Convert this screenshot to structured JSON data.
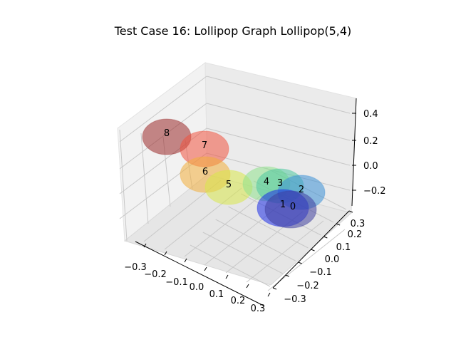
{
  "chart_data": {
    "type": "scatter",
    "title": "Test Case 16: Lollipop Graph Lollipop(5,4)",
    "xlabel": "",
    "ylabel": "",
    "zlabel": "",
    "grid": true,
    "projection": "3d",
    "x_ticks": [
      "−0.3",
      "−0.2",
      "−0.1",
      "0.0",
      "0.1",
      "0.2",
      "0.3"
    ],
    "y_ticks": [
      "−0.3",
      "−0.2",
      "−0.1",
      "0.0",
      "0.1",
      "0.2",
      "0.3"
    ],
    "z_ticks": [
      "−0.2",
      "0.0",
      "0.2",
      "0.4"
    ],
    "nodes": [
      {
        "label": "0",
        "color": "#3f3f9f"
      },
      {
        "label": "1",
        "color": "#1e2ee6"
      },
      {
        "label": "2",
        "color": "#3b8fd6"
      },
      {
        "label": "3",
        "color": "#4ec9a0"
      },
      {
        "label": "4",
        "color": "#8fe28c"
      },
      {
        "label": "5",
        "color": "#d8e84a"
      },
      {
        "label": "6",
        "color": "#f2ae3c"
      },
      {
        "label": "7",
        "color": "#f0533f"
      },
      {
        "label": "8",
        "color": "#9b2a2a"
      }
    ]
  }
}
